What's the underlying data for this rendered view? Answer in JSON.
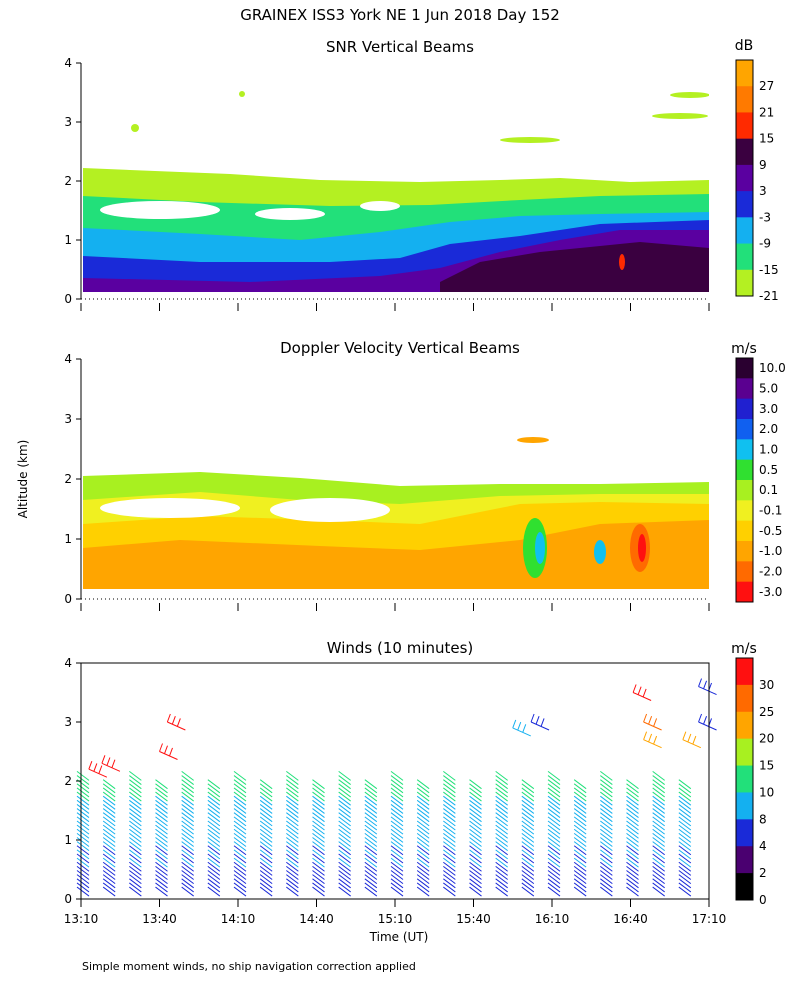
{
  "chart_data": {
    "type": "heatmap",
    "title": "GRAINEX ISS3 York NE   1 Jun 2018 Day 152",
    "footnote": "Simple moment winds, no ship navigation correction applied",
    "ylabel": "Altitude (km)",
    "xlabel": "Time (UT)",
    "x_ticks": [
      "13:10",
      "13:40",
      "14:10",
      "14:40",
      "15:10",
      "15:40",
      "16:10",
      "16:40",
      "17:10"
    ],
    "x_tick_minutes": [
      790,
      820,
      850,
      880,
      910,
      940,
      970,
      1000,
      1030
    ],
    "xlim": [
      790,
      1030
    ],
    "ylim": [
      0,
      4
    ],
    "y_ticks": [
      "0",
      "1",
      "2",
      "3",
      "4"
    ],
    "panels": [
      {
        "title": "SNR Vertical Beams",
        "unit": "dB",
        "colorbar_labels": [
          "27",
          "21",
          "15",
          "9",
          "3",
          "-3",
          "-9",
          "-15",
          "-21"
        ],
        "colors": [
          "#ffa500",
          "#ff7a00",
          "#ff2a00",
          "#3a0040",
          "#5a00a0",
          "#1a2ad8",
          "#14b0f0",
          "#22e07a",
          "#b4f022"
        ],
        "data": [
          {
            "time_start": 790,
            "time_end": 930,
            "altitude_km": [
              0.1,
              2.2
            ],
            "dominant_db": "-9 to -21"
          },
          {
            "time_start": 930,
            "time_end": 1030,
            "altitude_km": [
              0.1,
              1.9
            ],
            "dominant_db": "3 to 9"
          },
          {
            "time_start": 790,
            "time_end": 1030,
            "altitude_km": [
              2.2,
              4.0
            ],
            "dominant_db": "-21 (sparse)"
          }
        ]
      },
      {
        "title": "Doppler Velocity Vertical Beams",
        "unit": "m/s",
        "colorbar_labels": [
          "10.0",
          "5.0",
          "3.0",
          "2.0",
          "1.0",
          "0.5",
          "0.1",
          "-0.1",
          "-0.5",
          "-1.0",
          "-2.0",
          "-3.0"
        ],
        "colors": [
          "#2a0030",
          "#5a0090",
          "#2020d0",
          "#1060f0",
          "#10c0f0",
          "#30e030",
          "#a8f020",
          "#f0f020",
          "#ffd000",
          "#ffa500",
          "#ff6a00",
          "#ff1010"
        ],
        "data": [
          {
            "time_start": 790,
            "time_end": 930,
            "altitude_km": [
              0.1,
              2.0
            ],
            "dominant_ms": "-0.5 to 0.1"
          },
          {
            "time_start": 930,
            "time_end": 1030,
            "altitude_km": [
              0.1,
              1.9
            ],
            "dominant_ms": "-2.0 to 1.0"
          }
        ]
      },
      {
        "title": "Winds (10 minutes)",
        "unit": "m/s",
        "colorbar_labels": [
          "30",
          "25",
          "20",
          "15",
          "10",
          "8",
          "4",
          "2",
          "0"
        ],
        "colors": [
          "#ff1010",
          "#ff6a00",
          "#ffa500",
          "#a8f020",
          "#22e07a",
          "#14b0f0",
          "#1a2ad8",
          "#4a0070",
          "#000000"
        ],
        "data": [
          {
            "profile_interval_min": 10,
            "times_min": [
              790,
              800,
              810,
              820,
              830,
              840,
              850,
              860,
              870,
              880,
              890,
              900,
              910,
              920,
              930,
              940,
              950,
              960,
              970,
              980,
              990,
              1000,
              1010,
              1020,
              1030
            ]
          },
          {
            "altitude_km": [
              0.0,
              0.5
            ],
            "speed_ms": "4 to 8"
          },
          {
            "altitude_km": [
              0.5,
              2.0
            ],
            "speed_ms": "8 to 15"
          },
          {
            "altitude_km": [
              2.0,
              3.7
            ],
            "speed_ms": "20 to 30"
          }
        ]
      }
    ]
  }
}
